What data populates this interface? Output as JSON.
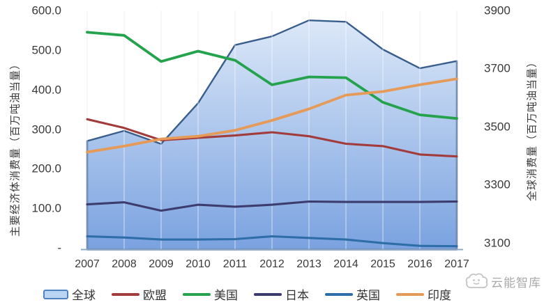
{
  "watermark": {
    "text": "云能智库"
  },
  "chart_data": {
    "type": "area+line combo (area on right axis, lines on left axis)",
    "x": [
      2007,
      2008,
      2009,
      2010,
      2011,
      2012,
      2013,
      2014,
      2015,
      2016,
      2017
    ],
    "left_axis": {
      "title": "主要经济体消费量（百万吨油当量）",
      "tick_labels": [
        "600.0",
        "500.0",
        "400.0",
        "300.0",
        "200.0",
        "100.0",
        "-"
      ],
      "tick_values": [
        600,
        500,
        400,
        300,
        200,
        100,
        0
      ],
      "range": [
        0,
        600
      ]
    },
    "right_axis": {
      "title": "全球消费量（百万吨油当量）",
      "tick_labels": [
        "3900",
        "3700",
        "3500",
        "3300",
        "3100"
      ],
      "tick_values": [
        3900,
        3700,
        3500,
        3300,
        3100
      ],
      "range": [
        3100,
        3900
      ]
    },
    "grid": "vertical gridlines at each year",
    "legend_position": "bottom",
    "series": [
      {
        "name": "全球",
        "type": "area",
        "axis": "right",
        "color": "#3a5e8c",
        "fill_top": "#dce8f8",
        "fill_bottom": "#7aa2e0",
        "values": [
          3450,
          3485,
          3440,
          3580,
          3780,
          3810,
          3865,
          3860,
          3765,
          3700,
          3725
        ]
      },
      {
        "name": "欧盟",
        "type": "line",
        "axis": "left",
        "color": "#a23b3b",
        "values": [
          325,
          303,
          272,
          278,
          284,
          292,
          282,
          263,
          257,
          236,
          231
        ]
      },
      {
        "name": "美国",
        "type": "line",
        "axis": "left",
        "color": "#25a24c",
        "values": [
          545,
          537,
          471,
          497,
          474,
          412,
          432,
          430,
          368,
          336,
          327
        ]
      },
      {
        "name": "日本",
        "type": "line",
        "axis": "left",
        "color": "#3c3c6e",
        "values": [
          110,
          115,
          94,
          109,
          104,
          109,
          117,
          116,
          116,
          116,
          117
        ]
      },
      {
        "name": "英国",
        "type": "line",
        "axis": "left",
        "color": "#2d6da8",
        "values": [
          29,
          26,
          21,
          21,
          22,
          29,
          25,
          21,
          12,
          5,
          4
        ]
      },
      {
        "name": "印度",
        "type": "line",
        "axis": "left",
        "color": "#e69a57",
        "values": [
          242,
          257,
          275,
          282,
          297,
          322,
          351,
          386,
          395,
          412,
          427
        ]
      }
    ]
  }
}
